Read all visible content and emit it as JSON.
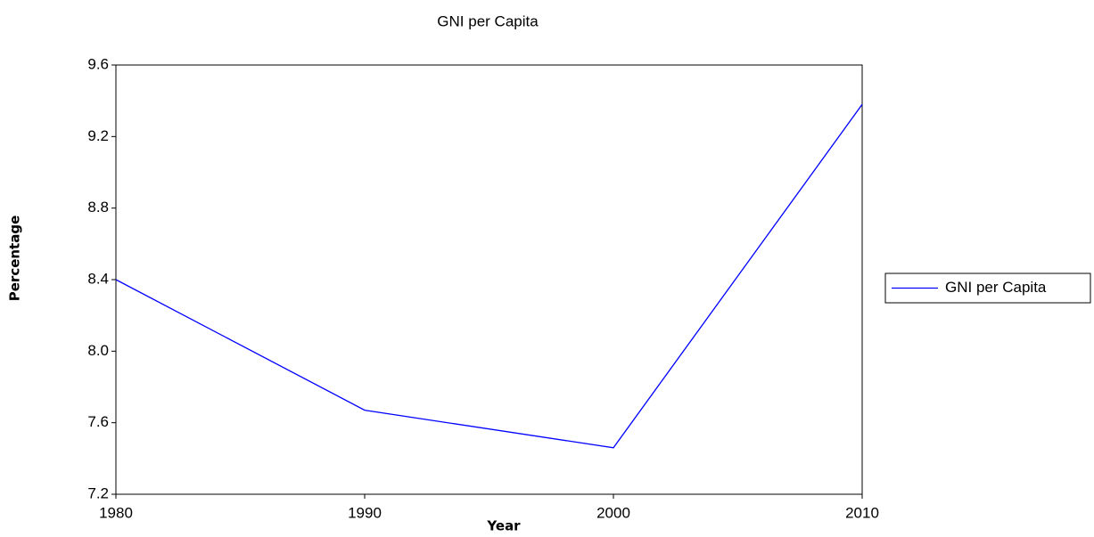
{
  "chart_data": {
    "type": "line",
    "title": "GNI per Capita",
    "x_label": "Year",
    "y_label": "Percentage",
    "x": [
      1980,
      1990,
      2000,
      2010
    ],
    "series": [
      {
        "name": "GNI per Capita",
        "color": "#0000ff",
        "values": [
          8.4,
          7.67,
          7.46,
          9.38
        ]
      }
    ],
    "xlim": [
      1980,
      2010
    ],
    "xticks": [
      1980,
      1990,
      2000,
      2010
    ],
    "ylim": [
      7.2,
      9.6
    ],
    "yticks": [
      7.2,
      7.6,
      {
        "value": 8,
        "label": "8.0"
      },
      8.4,
      8.8,
      9.2,
      9.6
    ],
    "grid": false,
    "legend": "right"
  }
}
